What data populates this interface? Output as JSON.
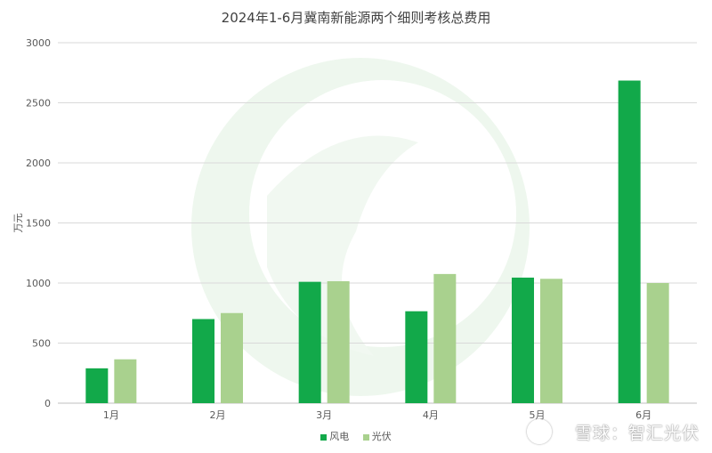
{
  "chart_data": {
    "type": "bar",
    "title": "2024年1-6月冀南新能源两个细则考核总费用",
    "ylabel": "万元",
    "xlabel": "",
    "ylim": [
      0,
      3000
    ],
    "yticks": [
      0,
      500,
      1000,
      1500,
      2000,
      2500,
      3000
    ],
    "categories": [
      "1月",
      "2月",
      "3月",
      "4月",
      "5月",
      "6月"
    ],
    "series": [
      {
        "name": "风电",
        "color": "#12a94a",
        "values": [
          290,
          700,
          1010,
          765,
          1045,
          2685
        ]
      },
      {
        "name": "光伏",
        "color": "#a9d18e",
        "values": [
          365,
          750,
          1015,
          1075,
          1035,
          1000
        ]
      }
    ],
    "grid": true,
    "legend_position": "bottom"
  },
  "watermark": {
    "text": "雪球：智汇光伏"
  }
}
